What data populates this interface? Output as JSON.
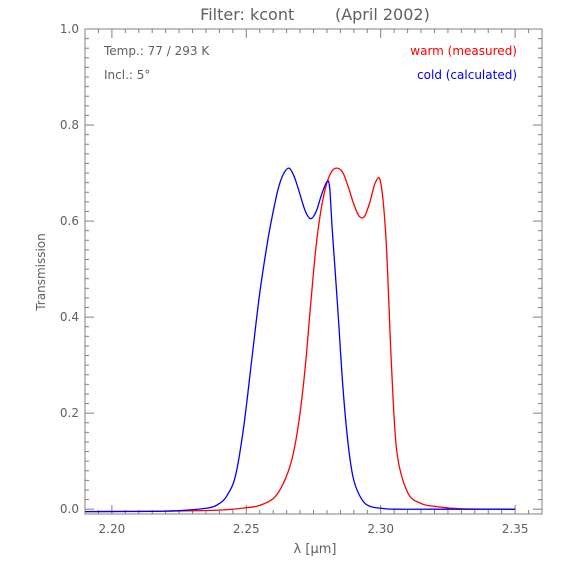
{
  "chart_data": {
    "type": "line",
    "title": "Filter: kcont        (April 2002)",
    "xlabel": "λ [μm]",
    "ylabel": "Transmission",
    "xlim": [
      2.19,
      2.36
    ],
    "ylim": [
      -0.01,
      1.0
    ],
    "x_ticks": [
      "2.20",
      "2.25",
      "2.30",
      "2.35"
    ],
    "x_tick_values": [
      2.2,
      2.25,
      2.3,
      2.35
    ],
    "y_ticks": [
      "0.0",
      "0.2",
      "0.4",
      "0.6",
      "0.8",
      "1.0"
    ],
    "y_tick_values": [
      0.0,
      0.2,
      0.4,
      0.6,
      0.8,
      1.0
    ],
    "grid": false,
    "annotations": [
      "Temp.: 77 / 293 K",
      "Incl.: 5°"
    ],
    "legend_position": "top-right",
    "series": [
      {
        "name": "warm (measured)",
        "color": "#ff0000",
        "x": [
          2.19,
          2.22,
          2.24,
          2.25,
          2.255,
          2.26,
          2.263,
          2.266,
          2.268,
          2.27,
          2.272,
          2.274,
          2.276,
          2.278,
          2.28,
          2.282,
          2.284,
          2.286,
          2.288,
          2.29,
          2.292,
          2.294,
          2.296,
          2.298,
          2.3,
          2.302,
          2.304,
          2.306,
          2.31,
          2.315,
          2.32,
          2.33,
          2.35
        ],
        "y": [
          -0.005,
          -0.004,
          -0.002,
          0.003,
          0.008,
          0.022,
          0.045,
          0.085,
          0.13,
          0.2,
          0.3,
          0.43,
          0.55,
          0.63,
          0.68,
          0.705,
          0.71,
          0.7,
          0.67,
          0.635,
          0.61,
          0.61,
          0.64,
          0.68,
          0.68,
          0.56,
          0.3,
          0.12,
          0.035,
          0.012,
          0.006,
          0.001,
          0.0
        ]
      },
      {
        "name": "cold (calculated)",
        "color": "#0000ff",
        "x": [
          2.19,
          2.22,
          2.235,
          2.24,
          2.243,
          2.246,
          2.249,
          2.252,
          2.255,
          2.258,
          2.26,
          2.262,
          2.264,
          2.266,
          2.268,
          2.27,
          2.272,
          2.274,
          2.276,
          2.278,
          2.28,
          2.281,
          2.282,
          2.284,
          2.286,
          2.288,
          2.29,
          2.293,
          2.296,
          2.3,
          2.305,
          2.32,
          2.35
        ],
        "y": [
          -0.005,
          -0.004,
          0.002,
          0.012,
          0.03,
          0.07,
          0.17,
          0.31,
          0.45,
          0.56,
          0.62,
          0.67,
          0.7,
          0.71,
          0.69,
          0.655,
          0.62,
          0.605,
          0.62,
          0.655,
          0.682,
          0.67,
          0.58,
          0.42,
          0.25,
          0.13,
          0.06,
          0.02,
          0.006,
          0.002,
          0.0,
          0.0,
          0.0
        ]
      }
    ]
  }
}
